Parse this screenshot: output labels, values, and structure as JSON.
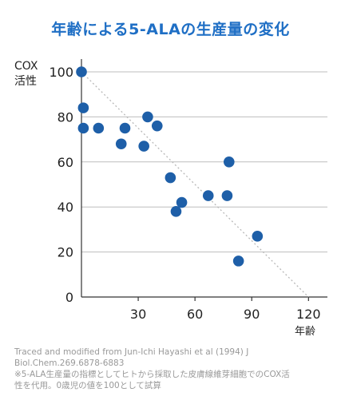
{
  "title": "年齢による5-ALAの生産量の変化",
  "chart_data": {
    "type": "scatter",
    "title": "年齢による5-ALAの生産量の変化",
    "ylabel_lines": [
      "COX",
      "活性"
    ],
    "xlabel": "年齢",
    "xlim": [
      0,
      130
    ],
    "ylim": [
      0,
      100
    ],
    "x_ticks": [
      30,
      60,
      90,
      120
    ],
    "y_ticks": [
      0,
      20,
      40,
      60,
      80,
      100
    ],
    "grid": true,
    "trend_line": {
      "from": [
        0,
        100
      ],
      "to": [
        120,
        0
      ]
    },
    "series": [
      {
        "points": [
          {
            "x": 0,
            "y": 100
          },
          {
            "x": 1,
            "y": 84
          },
          {
            "x": 1,
            "y": 75
          },
          {
            "x": 9,
            "y": 75
          },
          {
            "x": 23,
            "y": 75
          },
          {
            "x": 21,
            "y": 68
          },
          {
            "x": 35,
            "y": 80
          },
          {
            "x": 40,
            "y": 76
          },
          {
            "x": 33,
            "y": 67
          },
          {
            "x": 47,
            "y": 53
          },
          {
            "x": 53,
            "y": 42
          },
          {
            "x": 50,
            "y": 38
          },
          {
            "x": 67,
            "y": 45
          },
          {
            "x": 77,
            "y": 45
          },
          {
            "x": 78,
            "y": 60
          },
          {
            "x": 93,
            "y": 27
          },
          {
            "x": 83,
            "y": 16
          }
        ]
      }
    ],
    "point_color": "#1e5fa8",
    "grid_color": "#bdbdbd",
    "trend_color": "#b8b8b8"
  },
  "footnote": {
    "source_line1": "Traced and modified from Jun-Ichi Hayashi et al (1994) J",
    "source_line2": "Biol.Chem.269.6878-6883",
    "note_line1": "※5-ALA生産量の指標としてヒトから採取した皮膚線維芽細胞でのCOX活",
    "note_line2": "性を代用。0歳児の値を100として試算"
  }
}
